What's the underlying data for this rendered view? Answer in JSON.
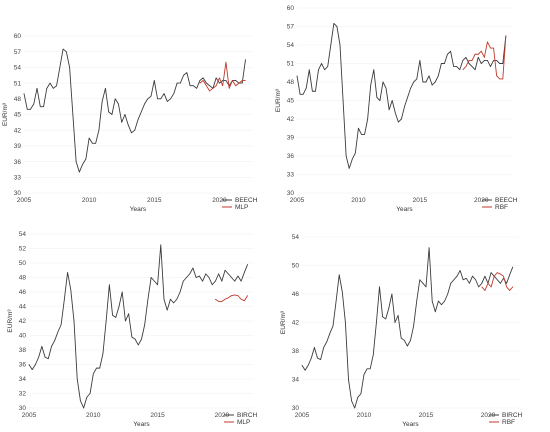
{
  "colors": {
    "actual": "#3c3c3c",
    "predicted": "#c0392b",
    "grid": "#f0f0f0"
  },
  "chart_data": [
    {
      "type": "line",
      "xlabel": "Years",
      "ylabel": "EUR/m³",
      "xlim": [
        2005,
        2022.5
      ],
      "ylim": [
        30,
        60
      ],
      "xticks": [
        2005,
        2010,
        2015,
        2020
      ],
      "yticks": [
        30,
        33,
        36,
        39,
        42,
        45,
        48,
        51,
        54,
        57,
        60
      ],
      "legend": "bottom-right",
      "series": [
        {
          "name": "BEECH",
          "role": "actual",
          "x": [
            2005.0,
            2005.25,
            2005.5,
            2005.75,
            2006.0,
            2006.25,
            2006.5,
            2006.75,
            2007.0,
            2007.25,
            2007.5,
            2007.75,
            2008.0,
            2008.25,
            2008.5,
            2008.75,
            2009.0,
            2009.25,
            2009.5,
            2009.75,
            2010.0,
            2010.25,
            2010.5,
            2010.75,
            2011.0,
            2011.25,
            2011.5,
            2011.75,
            2012.0,
            2012.25,
            2012.5,
            2012.75,
            2013.0,
            2013.25,
            2013.5,
            2013.75,
            2014.0,
            2014.25,
            2014.5,
            2014.75,
            2015.0,
            2015.25,
            2015.5,
            2015.75,
            2016.0,
            2016.25,
            2016.5,
            2016.75,
            2017.0,
            2017.25,
            2017.5,
            2017.75,
            2018.0,
            2018.25,
            2018.5,
            2018.75,
            2019.0,
            2019.25,
            2019.5,
            2019.75,
            2020.0,
            2020.25,
            2020.5,
            2020.75,
            2021.0,
            2021.25,
            2021.5,
            2021.75,
            2022.0
          ],
          "y": [
            49.0,
            46.0,
            46.0,
            47.0,
            50.0,
            46.5,
            46.5,
            50.0,
            51.0,
            50.0,
            50.5,
            54.0,
            57.5,
            57.0,
            54.0,
            45.0,
            36.0,
            34.0,
            35.5,
            36.5,
            40.5,
            39.5,
            39.5,
            42.0,
            47.5,
            50.0,
            45.5,
            45.0,
            48.0,
            47.0,
            43.5,
            45.0,
            43.0,
            41.5,
            42.0,
            44.0,
            45.5,
            47.0,
            48.0,
            48.5,
            51.5,
            48.0,
            48.0,
            49.0,
            47.5,
            48.0,
            49.0,
            51.0,
            51.0,
            52.5,
            53.0,
            50.5,
            50.5,
            50.0,
            51.5,
            52.0,
            51.0,
            50.5,
            50.0,
            52.0,
            51.0,
            51.5,
            51.5,
            50.5,
            51.5,
            51.5,
            51.0,
            51.0,
            55.5
          ]
        },
        {
          "name": "MLP",
          "role": "predicted",
          "x": [
            2018.5,
            2018.75,
            2019.0,
            2019.25,
            2019.5,
            2019.75,
            2020.0,
            2020.25,
            2020.5,
            2020.75,
            2021.0,
            2021.25,
            2021.5,
            2021.75,
            2022.0
          ],
          "y": [
            51.0,
            51.5,
            50.5,
            49.5,
            50.0,
            50.5,
            52.0,
            50.5,
            55.0,
            50.0,
            51.5,
            50.5,
            51.0,
            51.5,
            51.5
          ]
        }
      ]
    },
    {
      "type": "line",
      "xlabel": "Years",
      "ylabel": "EUR/m³",
      "xlim": [
        2005,
        2022.5
      ],
      "ylim": [
        30,
        60
      ],
      "xticks": [
        2005,
        2010,
        2015,
        2020
      ],
      "yticks": [
        30,
        33,
        36,
        39,
        42,
        45,
        48,
        51,
        54,
        57,
        60
      ],
      "legend": "bottom-right",
      "series": [
        {
          "name": "BEECH",
          "role": "actual",
          "x": [
            2005.0,
            2005.25,
            2005.5,
            2005.75,
            2006.0,
            2006.25,
            2006.5,
            2006.75,
            2007.0,
            2007.25,
            2007.5,
            2007.75,
            2008.0,
            2008.25,
            2008.5,
            2008.75,
            2009.0,
            2009.25,
            2009.5,
            2009.75,
            2010.0,
            2010.25,
            2010.5,
            2010.75,
            2011.0,
            2011.25,
            2011.5,
            2011.75,
            2012.0,
            2012.25,
            2012.5,
            2012.75,
            2013.0,
            2013.25,
            2013.5,
            2013.75,
            2014.0,
            2014.25,
            2014.5,
            2014.75,
            2015.0,
            2015.25,
            2015.5,
            2015.75,
            2016.0,
            2016.25,
            2016.5,
            2016.75,
            2017.0,
            2017.25,
            2017.5,
            2017.75,
            2018.0,
            2018.25,
            2018.5,
            2018.75,
            2019.0,
            2019.25,
            2019.5,
            2019.75,
            2020.0,
            2020.25,
            2020.5,
            2020.75,
            2021.0,
            2021.25,
            2021.5,
            2021.75,
            2022.0
          ],
          "y": [
            49.0,
            46.0,
            46.0,
            47.0,
            50.0,
            46.5,
            46.5,
            50.0,
            51.0,
            50.0,
            50.5,
            54.0,
            57.5,
            57.0,
            54.0,
            45.0,
            36.0,
            34.0,
            35.5,
            36.5,
            40.5,
            39.5,
            39.5,
            42.0,
            47.5,
            50.0,
            45.5,
            45.0,
            48.0,
            47.0,
            43.5,
            45.0,
            43.0,
            41.5,
            42.0,
            44.0,
            45.5,
            47.0,
            48.0,
            48.5,
            51.5,
            48.0,
            48.0,
            49.0,
            47.5,
            48.0,
            49.0,
            51.0,
            51.0,
            52.5,
            53.0,
            50.5,
            50.5,
            50.0,
            51.5,
            52.0,
            51.0,
            50.5,
            50.0,
            52.0,
            51.0,
            51.5,
            51.5,
            50.5,
            51.5,
            51.5,
            51.0,
            51.0,
            55.5
          ]
        },
        {
          "name": "RBF",
          "role": "predicted",
          "x": [
            2018.5,
            2018.75,
            2019.0,
            2019.25,
            2019.5,
            2019.75,
            2020.0,
            2020.25,
            2020.5,
            2020.75,
            2021.0,
            2021.25,
            2021.5,
            2021.75,
            2022.0
          ],
          "y": [
            50.0,
            50.5,
            51.5,
            51.5,
            52.5,
            52.5,
            53.0,
            52.0,
            54.5,
            53.5,
            53.5,
            49.0,
            48.5,
            48.5,
            55.5
          ]
        }
      ]
    },
    {
      "type": "line",
      "xlabel": "Years",
      "ylabel": "EUR/m³",
      "xlim": [
        2005,
        2022.5
      ],
      "ylim": [
        30,
        54
      ],
      "xticks": [
        2005,
        2010,
        2015,
        2020
      ],
      "yticks": [
        30,
        32,
        34,
        36,
        38,
        40,
        42,
        44,
        46,
        48,
        50,
        52,
        54
      ],
      "legend": "bottom-right",
      "series": [
        {
          "name": "BIRCH",
          "role": "actual",
          "x": [
            2005.0,
            2005.25,
            2005.5,
            2005.75,
            2006.0,
            2006.25,
            2006.5,
            2006.75,
            2007.0,
            2007.25,
            2007.5,
            2007.75,
            2008.0,
            2008.25,
            2008.5,
            2008.75,
            2009.0,
            2009.25,
            2009.5,
            2009.75,
            2010.0,
            2010.25,
            2010.5,
            2010.75,
            2011.0,
            2011.25,
            2011.5,
            2011.75,
            2012.0,
            2012.25,
            2012.5,
            2012.75,
            2013.0,
            2013.25,
            2013.5,
            2013.75,
            2014.0,
            2014.25,
            2014.5,
            2014.75,
            2015.0,
            2015.25,
            2015.5,
            2015.75,
            2016.0,
            2016.25,
            2016.5,
            2016.75,
            2017.0,
            2017.25,
            2017.5,
            2017.75,
            2018.0,
            2018.25,
            2018.5,
            2018.75,
            2019.0,
            2019.25,
            2019.5,
            2019.75,
            2020.0,
            2020.25,
            2020.5,
            2020.75,
            2021.0,
            2021.25,
            2021.5,
            2021.75,
            2022.0
          ],
          "y": [
            36.0,
            35.3,
            36.0,
            37.0,
            38.5,
            37.0,
            36.8,
            38.5,
            39.3,
            40.5,
            41.5,
            45.0,
            48.7,
            46.3,
            42.0,
            34.0,
            31.0,
            30.0,
            31.5,
            32.0,
            34.7,
            35.5,
            35.5,
            37.5,
            42.0,
            47.0,
            42.8,
            42.5,
            44.0,
            46.0,
            42.0,
            43.0,
            39.8,
            39.5,
            38.7,
            39.5,
            41.5,
            45.0,
            48.0,
            47.5,
            47.0,
            52.5,
            45.0,
            43.5,
            45.0,
            44.5,
            45.0,
            46.0,
            47.5,
            48.0,
            48.5,
            49.3,
            48.0,
            48.2,
            47.5,
            48.5,
            48.0,
            47.0,
            47.5,
            48.5,
            47.5,
            49.0,
            48.5,
            48.0,
            47.5,
            48.2,
            47.5,
            48.7,
            49.8
          ]
        },
        {
          "name": "MLP",
          "role": "predicted",
          "x": [
            2019.5,
            2019.75,
            2020.0,
            2020.25,
            2020.5,
            2020.75,
            2021.0,
            2021.25,
            2021.5,
            2021.75,
            2022.0
          ],
          "y": [
            45.0,
            44.7,
            44.7,
            45.0,
            45.2,
            45.5,
            45.6,
            45.5,
            45.0,
            44.8,
            45.5
          ]
        }
      ]
    },
    {
      "type": "line",
      "xlabel": "Years",
      "ylabel": "EUR/m³",
      "xlim": [
        2005,
        2022.5
      ],
      "ylim": [
        30,
        54
      ],
      "xticks": [
        2005,
        2010,
        2015,
        2020
      ],
      "yticks": [
        30,
        34,
        38,
        42,
        46,
        50,
        54
      ],
      "legend": "bottom-right",
      "series": [
        {
          "name": "BIRCH",
          "role": "actual",
          "x": [
            2005.0,
            2005.25,
            2005.5,
            2005.75,
            2006.0,
            2006.25,
            2006.5,
            2006.75,
            2007.0,
            2007.25,
            2007.5,
            2007.75,
            2008.0,
            2008.25,
            2008.5,
            2008.75,
            2009.0,
            2009.25,
            2009.5,
            2009.75,
            2010.0,
            2010.25,
            2010.5,
            2010.75,
            2011.0,
            2011.25,
            2011.5,
            2011.75,
            2012.0,
            2012.25,
            2012.5,
            2012.75,
            2013.0,
            2013.25,
            2013.5,
            2013.75,
            2014.0,
            2014.25,
            2014.5,
            2014.75,
            2015.0,
            2015.25,
            2015.5,
            2015.75,
            2016.0,
            2016.25,
            2016.5,
            2016.75,
            2017.0,
            2017.25,
            2017.5,
            2017.75,
            2018.0,
            2018.25,
            2018.5,
            2018.75,
            2019.0,
            2019.25,
            2019.5,
            2019.75,
            2020.0,
            2020.25,
            2020.5,
            2020.75,
            2021.0,
            2021.25,
            2021.5,
            2021.75,
            2022.0
          ],
          "y": [
            36.0,
            35.3,
            36.0,
            37.0,
            38.5,
            37.0,
            36.8,
            38.5,
            39.3,
            40.5,
            41.5,
            45.0,
            48.7,
            46.3,
            42.0,
            34.0,
            31.0,
            30.0,
            31.5,
            32.0,
            34.7,
            35.5,
            35.5,
            37.5,
            42.0,
            47.0,
            42.8,
            42.5,
            44.0,
            46.0,
            42.0,
            43.0,
            39.8,
            39.5,
            38.7,
            39.5,
            41.5,
            45.0,
            48.0,
            47.5,
            47.0,
            52.5,
            45.0,
            43.5,
            45.0,
            44.5,
            45.0,
            46.0,
            47.5,
            48.0,
            48.5,
            49.3,
            48.0,
            48.2,
            47.5,
            48.5,
            48.0,
            47.0,
            47.5,
            48.5,
            47.5,
            49.0,
            48.5,
            48.0,
            47.5,
            48.2,
            47.5,
            48.7,
            49.8
          ]
        },
        {
          "name": "RBF",
          "role": "predicted",
          "x": [
            2019.5,
            2019.75,
            2020.0,
            2020.25,
            2020.5,
            2020.75,
            2021.0,
            2021.25,
            2021.5,
            2021.75,
            2022.0
          ],
          "y": [
            47.0,
            46.5,
            47.5,
            47.0,
            48.5,
            49.0,
            48.8,
            48.5,
            47.0,
            46.5,
            47.0
          ]
        }
      ]
    }
  ]
}
